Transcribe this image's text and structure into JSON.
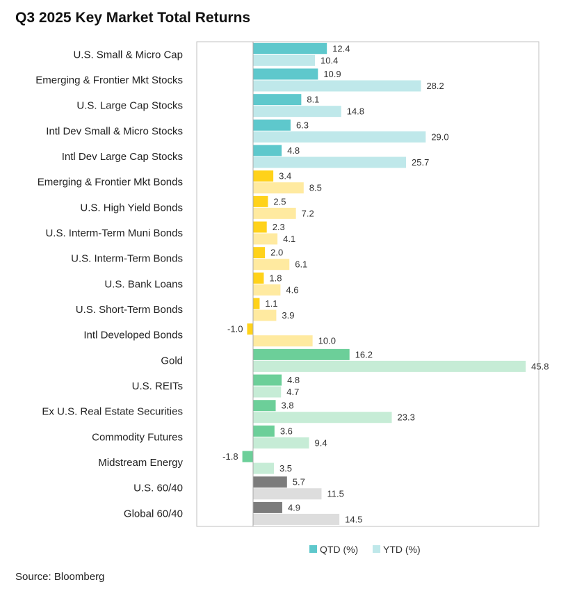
{
  "title": "Q3 2025 Key Market Total Returns",
  "source": "Source: Bloomberg",
  "chart_data": {
    "type": "bar",
    "orientation": "horizontal",
    "title": "Q3 2025 Key Market Total Returns",
    "xlabel": "",
    "ylabel": "",
    "xlim": [
      -4,
      48
    ],
    "grid": false,
    "legend_position": "bottom",
    "categories": [
      "U.S. Small & Micro Cap",
      "Emerging & Frontier Mkt Stocks",
      "U.S. Large Cap Stocks",
      "Intl Dev Small & Micro Stocks",
      "Intl Dev Large Cap Stocks",
      "Emerging & Frontier Mkt Bonds",
      "U.S. High Yield Bonds",
      "U.S. Interm-Term Muni Bonds",
      "U.S. Interm-Term Bonds",
      "U.S. Bank Loans",
      "U.S. Short-Term Bonds",
      "Intl Developed Bonds",
      "Gold",
      "U.S. REITs",
      "Ex U.S. Real Estate Securities",
      "Commodity Futures",
      "Midstream Energy",
      "U.S. 60/40",
      "Global 60/40"
    ],
    "groups": [
      "stocks",
      "stocks",
      "stocks",
      "stocks",
      "stocks",
      "bonds",
      "bonds",
      "bonds",
      "bonds",
      "bonds",
      "bonds",
      "bonds",
      "real",
      "real",
      "real",
      "real",
      "real",
      "balanced",
      "balanced"
    ],
    "series": [
      {
        "name": "QTD (%)",
        "values": [
          12.4,
          10.9,
          8.1,
          6.3,
          4.8,
          3.4,
          2.5,
          2.3,
          2.0,
          1.8,
          1.1,
          -1.0,
          16.2,
          4.8,
          3.8,
          3.6,
          -1.8,
          5.7,
          4.9
        ]
      },
      {
        "name": "YTD (%)",
        "values": [
          10.4,
          28.2,
          14.8,
          29.0,
          25.7,
          8.5,
          7.2,
          4.1,
          6.1,
          4.6,
          3.9,
          10.0,
          45.8,
          4.7,
          23.3,
          9.4,
          3.5,
          11.5,
          14.5
        ]
      }
    ],
    "value_labels": [
      [
        "12.4",
        "10.9",
        "8.1",
        "6.3",
        "4.8",
        "3.4",
        "2.5",
        "2.3",
        "2.0",
        "1.8",
        "1.1",
        "-1.0",
        "16.2",
        "4.8",
        "3.8",
        "3.6",
        "-1.8",
        "5.7",
        "4.9"
      ],
      [
        "10.4",
        "28.2",
        "14.8",
        "29.0",
        "25.7",
        "8.5",
        "7.2",
        "4.1",
        "6.1",
        "4.6",
        "3.9",
        "10.0",
        "45.8",
        "4.7",
        "23.3",
        "9.4",
        "3.5",
        "11.5",
        "14.5"
      ]
    ],
    "colors": {
      "stocks": {
        "qtd": "#5ec8cc",
        "ytd": "#bfe8ea"
      },
      "bonds": {
        "qtd": "#ffd21a",
        "ytd": "#ffeaa0"
      },
      "real": {
        "qtd": "#6ccf99",
        "ytd": "#c6ecd6"
      },
      "balanced": {
        "qtd": "#7c7c7c",
        "ytd": "#dddddd"
      },
      "legend": {
        "qtd": "#5ec8cc",
        "ytd": "#bfe8ea"
      }
    }
  }
}
